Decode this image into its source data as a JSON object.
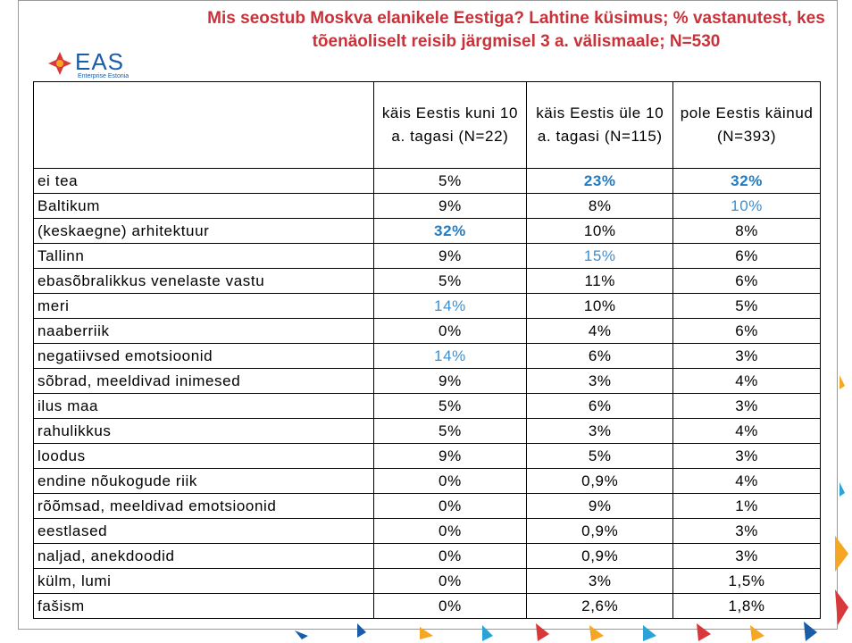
{
  "header": {
    "title": "Mis seostub Moskva elanikele Eestiga? Lahtine küsimus; % vastanutest, kes tõenäoliselt reisib järgmisel 3 a. välismaale; N=530",
    "logo": "EAS",
    "logo_sub": "Enterprise Estonia"
  },
  "table": {
    "columns": [
      "käis Eestis kuni 10 a. tagasi (N=22)",
      "käis Eestis üle 10 a. tagasi (N=115)",
      "pole Eestis käinud (N=393)"
    ],
    "rows": [
      {
        "label": "ei tea",
        "cells": [
          "5%",
          {
            "text": "23%",
            "color": "#1f7bc4",
            "bold": true
          },
          {
            "text": "32%",
            "color": "#1f7bc4",
            "bold": true
          }
        ]
      },
      {
        "label": "Baltikum",
        "cells": [
          "9%",
          "8%",
          {
            "text": "10%",
            "color": "#3a8fd6",
            "bold": false
          }
        ]
      },
      {
        "label": "(keskaegne) arhitektuur",
        "cells": [
          {
            "text": "32%",
            "color": "#1f7bc4",
            "bold": true
          },
          "10%",
          "8%"
        ]
      },
      {
        "label": "Tallinn",
        "cells": [
          "9%",
          {
            "text": "15%",
            "color": "#3a8fd6",
            "bold": false
          },
          "6%"
        ]
      },
      {
        "label": "ebasõbralikkus venelaste vastu",
        "cells": [
          "5%",
          "11%",
          "6%"
        ]
      },
      {
        "label": "meri",
        "cells": [
          {
            "text": "14%",
            "color": "#3a8fd6",
            "bold": false
          },
          "10%",
          "5%"
        ]
      },
      {
        "label": "naaberriik",
        "cells": [
          "0%",
          "4%",
          "6%"
        ]
      },
      {
        "label": "negatiivsed emotsioonid",
        "cells": [
          {
            "text": "14%",
            "color": "#3a8fd6",
            "bold": false
          },
          "6%",
          "3%"
        ]
      },
      {
        "label": "sõbrad, meeldivad inimesed",
        "cells": [
          "9%",
          "3%",
          "4%"
        ]
      },
      {
        "label": "ilus maa",
        "cells": [
          "5%",
          "6%",
          "3%"
        ]
      },
      {
        "label": "rahulikkus",
        "cells": [
          "5%",
          "3%",
          "4%"
        ]
      },
      {
        "label": "loodus",
        "cells": [
          "9%",
          "5%",
          "3%"
        ]
      },
      {
        "label": "endine nõukogude riik",
        "cells": [
          "0%",
          "0,9%",
          "4%"
        ]
      },
      {
        "label": "rõõmsad, meeldivad emotsioonid",
        "cells": [
          "0%",
          "9%",
          "1%"
        ]
      },
      {
        "label": "eestlased",
        "cells": [
          "0%",
          "0,9%",
          "3%"
        ]
      },
      {
        "label": "naljad, anekdoodid",
        "cells": [
          "0%",
          "0,9%",
          "3%"
        ]
      },
      {
        "label": "külm, lumi",
        "cells": [
          "0%",
          "3%",
          "1,5%"
        ]
      },
      {
        "label": "fašism",
        "cells": [
          "0%",
          "2,6%",
          "1,8%"
        ]
      }
    ]
  }
}
